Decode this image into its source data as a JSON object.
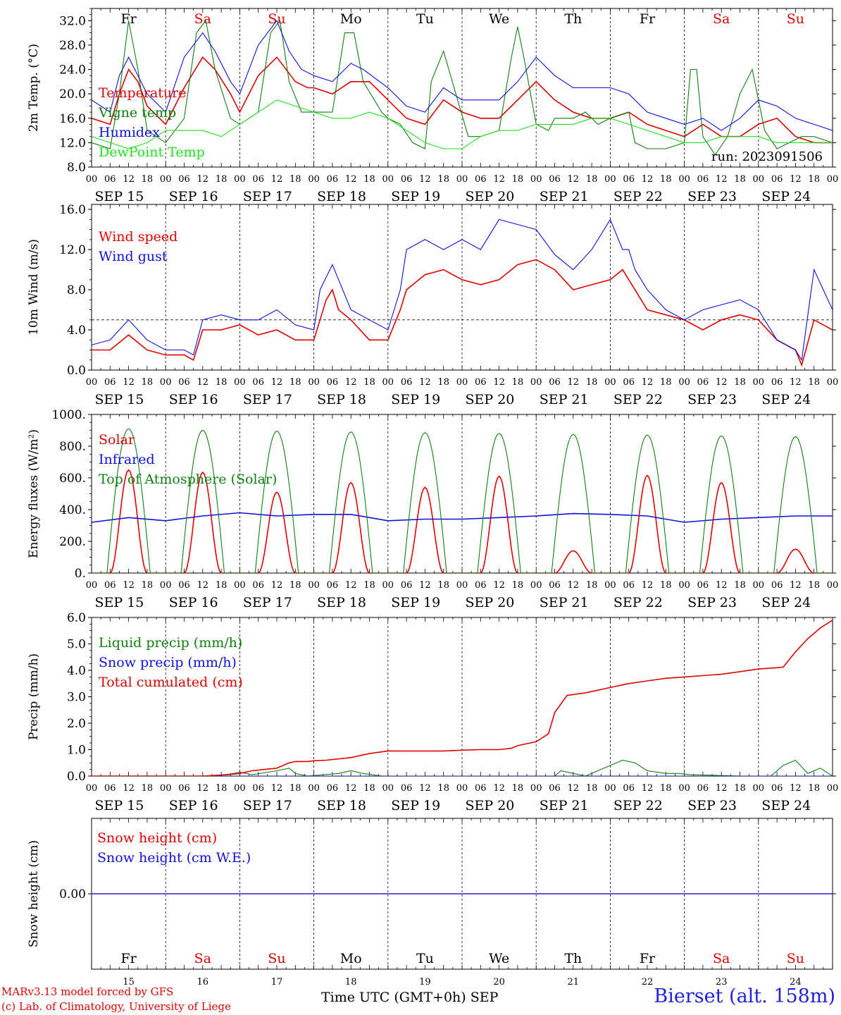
{
  "run_label": "run: 2023091506",
  "station": "Bierset (alt. 158m)",
  "credits": [
    "MARv3.13 model forced by GFS",
    "(c) Lab. of Climatology, University of Liege"
  ],
  "x_axis_title": "Time UTC (GMT+0h)",
  "x_axis_month": "SEP",
  "hour_ticks": [
    "00",
    "06",
    "12",
    "18"
  ],
  "day_labels": [
    "SEP 15",
    "SEP 16",
    "SEP 17",
    "SEP 18",
    "SEP 19",
    "SEP 20",
    "SEP 21",
    "SEP 22",
    "SEP 23",
    "SEP 24"
  ],
  "day_numbers": [
    "15",
    "16",
    "17",
    "18",
    "19",
    "20",
    "21",
    "22",
    "23",
    "24"
  ],
  "weekdays": [
    "Fr",
    "Sa",
    "Su",
    "Mo",
    "Tu",
    "We",
    "Th",
    "Fr",
    "Sa",
    "Su"
  ],
  "weekday_colors": [
    "#000000",
    "#e00000",
    "#e00000",
    "#000000",
    "#000000",
    "#000000",
    "#000000",
    "#000000",
    "#e00000",
    "#e00000"
  ],
  "colors": {
    "red": "#e00000",
    "blue": "#1010e0",
    "green": "#108010",
    "lightgreen": "#20e020",
    "purple": "#8030a0"
  },
  "chart_data": [
    {
      "type": "line",
      "ylabel": "2m Temp. (°C)",
      "ylim": [
        8,
        34
      ],
      "yticks": [
        8.0,
        12.0,
        16.0,
        20.0,
        24.0,
        28.0,
        32.0
      ],
      "ytick_labels": [
        "8.0",
        "12.0",
        "16.0",
        "20.0",
        "24.0",
        "28.0",
        "32.0"
      ],
      "x_unit": "hours since SEP 15 00 UTC",
      "x_range": [
        0,
        240
      ],
      "series": [
        {
          "name": "Temperature",
          "color": "#e00000",
          "x": [
            0,
            6,
            9,
            12,
            15,
            18,
            24,
            30,
            36,
            40,
            45,
            48,
            54,
            60,
            66,
            70,
            72,
            78,
            84,
            90,
            96,
            102,
            108,
            114,
            120,
            126,
            132,
            138,
            144,
            150,
            156,
            162,
            168,
            174,
            180,
            186,
            192,
            198,
            204,
            210,
            216,
            222,
            228,
            234,
            240
          ],
          "values": [
            16,
            15,
            20,
            24,
            22,
            18,
            15,
            21,
            26,
            24,
            20,
            17,
            23,
            26,
            22,
            21,
            21,
            20,
            22,
            22,
            19,
            16,
            15,
            19,
            17,
            16,
            16,
            19,
            22,
            19,
            17,
            16,
            16,
            17,
            15,
            14,
            13,
            15,
            13,
            13,
            15,
            16,
            13,
            12,
            12
          ]
        },
        {
          "name": "Vigne temp",
          "color": "#108010",
          "x": [
            0,
            6,
            9,
            12,
            15,
            18,
            24,
            30,
            34,
            37,
            40,
            45,
            48,
            54,
            58,
            61,
            64,
            68,
            72,
            78,
            82,
            85,
            88,
            94,
            96,
            100,
            104,
            108,
            110,
            114,
            118,
            122,
            126,
            132,
            136,
            138,
            140,
            144,
            148,
            150,
            152,
            156,
            160,
            164,
            168,
            174,
            176,
            180,
            186,
            192,
            194,
            196,
            198,
            202,
            206,
            210,
            214,
            218,
            222,
            226,
            230,
            234,
            240
          ],
          "values": [
            12,
            11,
            20,
            32,
            24,
            14,
            12,
            16,
            30,
            32,
            24,
            16,
            15,
            17,
            30,
            32,
            22,
            17,
            17,
            17,
            30,
            30,
            22,
            17,
            16,
            15,
            12,
            11,
            22,
            27,
            20,
            13,
            13,
            14,
            26,
            31,
            26,
            15,
            14,
            16,
            16,
            16,
            17,
            15,
            16,
            17,
            12,
            11,
            11,
            12,
            24,
            24,
            13,
            10,
            13,
            20,
            24,
            14,
            11,
            12,
            13,
            13,
            12
          ]
        },
        {
          "name": "Humidex",
          "color": "#1010e0",
          "x": [
            0,
            6,
            9,
            12,
            15,
            18,
            24,
            30,
            36,
            40,
            45,
            48,
            54,
            60,
            64,
            68,
            72,
            78,
            84,
            88,
            96,
            102,
            108,
            114,
            120,
            126,
            132,
            138,
            144,
            150,
            156,
            162,
            168,
            174,
            180,
            186,
            192,
            198,
            204,
            210,
            216,
            222,
            228,
            234,
            240
          ],
          "values": [
            19,
            17,
            23,
            26,
            23,
            20,
            17,
            26,
            30,
            27,
            22,
            20,
            28,
            32,
            27,
            24,
            23,
            22,
            25,
            24,
            21,
            18,
            17,
            21,
            19,
            19,
            19,
            22,
            26,
            23,
            21,
            21,
            21,
            20,
            17,
            16,
            15,
            16,
            14,
            16,
            19,
            18,
            16,
            15,
            14
          ]
        },
        {
          "name": "DewPoint Temp",
          "color": "#20e020",
          "x": [
            0,
            6,
            12,
            18,
            24,
            30,
            36,
            42,
            48,
            54,
            60,
            66,
            72,
            78,
            84,
            90,
            96,
            102,
            108,
            114,
            120,
            126,
            132,
            138,
            144,
            150,
            156,
            162,
            168,
            174,
            180,
            186,
            192,
            198,
            204,
            210,
            216,
            222,
            228,
            234,
            240
          ],
          "values": [
            13,
            12,
            11,
            12,
            14,
            14,
            14,
            13,
            15,
            17,
            19,
            18,
            17,
            16,
            16,
            17,
            16,
            14,
            12,
            11,
            11,
            13,
            14,
            14,
            15,
            15,
            15,
            16,
            16,
            15,
            14,
            13,
            12,
            12,
            13,
            13,
            13,
            12,
            12,
            12,
            12
          ]
        }
      ]
    },
    {
      "type": "line",
      "ylabel": "10m Wind (m/s)",
      "ylim": [
        0,
        16
      ],
      "yticks": [
        0,
        4,
        8,
        12,
        16
      ],
      "ytick_labels": [
        "0.0",
        "4.0",
        "8.0",
        "12.0",
        "16.0"
      ],
      "reference_line": 5,
      "x_unit": "hours since SEP 15 00 UTC",
      "x_range": [
        0,
        240
      ],
      "series": [
        {
          "name": "Wind speed",
          "color": "#e00000",
          "x": [
            0,
            6,
            12,
            18,
            24,
            30,
            33,
            36,
            42,
            48,
            54,
            60,
            66,
            72,
            76,
            78,
            80,
            84,
            90,
            96,
            100,
            102,
            108,
            114,
            120,
            126,
            132,
            138,
            144,
            150,
            156,
            162,
            168,
            172,
            174,
            176,
            180,
            186,
            192,
            198,
            204,
            210,
            216,
            222,
            228,
            230,
            234,
            240
          ],
          "values": [
            2,
            2,
            3.5,
            2,
            1.5,
            1.5,
            1,
            4,
            4,
            4.5,
            3.5,
            4,
            3,
            3,
            7,
            8,
            6,
            5,
            3,
            3,
            6,
            8,
            9.5,
            10,
            9,
            8.5,
            9,
            10.5,
            11,
            10,
            8,
            8.5,
            9,
            10,
            9,
            8,
            6,
            5.5,
            5,
            4,
            5,
            5.5,
            5,
            3,
            2,
            0.5,
            5,
            4
          ]
        },
        {
          "name": "Wind gust",
          "color": "#1010e0",
          "x": [
            0,
            6,
            12,
            18,
            24,
            30,
            33,
            36,
            42,
            48,
            54,
            60,
            66,
            72,
            74,
            78,
            80,
            84,
            90,
            96,
            100,
            102,
            108,
            114,
            120,
            126,
            132,
            138,
            144,
            150,
            156,
            162,
            168,
            172,
            174,
            176,
            180,
            186,
            192,
            198,
            204,
            210,
            216,
            222,
            228,
            230,
            234,
            240
          ],
          "values": [
            2.5,
            3,
            5,
            3,
            2,
            2,
            1.5,
            5,
            5.5,
            5,
            5,
            6,
            4.5,
            4,
            8,
            10.5,
            9,
            6,
            5,
            4,
            8,
            12,
            13,
            12,
            13,
            12,
            15,
            14.5,
            14,
            11.5,
            10,
            12,
            15,
            12,
            12,
            10,
            8,
            6,
            5,
            6,
            6.5,
            7,
            6,
            3,
            2,
            1,
            10,
            6
          ]
        }
      ]
    },
    {
      "type": "line",
      "ylabel": "Energy fluxes (W/m²)",
      "ylim": [
        0,
        1000
      ],
      "yticks": [
        0,
        200,
        400,
        600,
        800,
        1000
      ],
      "ytick_labels": [
        "0.",
        "200.",
        "400.",
        "600.",
        "800.",
        "1000."
      ],
      "x_unit": "hours since SEP 15 00 UTC",
      "x_range": [
        0,
        240
      ],
      "solar_peaks_wm2": [
        650,
        635,
        510,
        570,
        540,
        610,
        140,
        615,
        570,
        150
      ],
      "toa_peaks_wm2": [
        910,
        900,
        895,
        890,
        885,
        880,
        875,
        870,
        865,
        860
      ],
      "series": [
        {
          "name": "Solar",
          "color": "#e00000"
        },
        {
          "name": "Infrared",
          "color": "#1010e0",
          "x": [
            0,
            12,
            24,
            36,
            48,
            60,
            72,
            84,
            96,
            108,
            120,
            132,
            144,
            156,
            168,
            180,
            192,
            204,
            216,
            228,
            240
          ],
          "values": [
            320,
            350,
            330,
            360,
            380,
            360,
            370,
            370,
            330,
            340,
            340,
            350,
            360,
            375,
            370,
            360,
            320,
            340,
            350,
            360,
            360
          ]
        },
        {
          "name": "Top of Atmosphere (Solar)",
          "color": "#108010"
        }
      ]
    },
    {
      "type": "line",
      "ylabel": "Precip (mm/h)",
      "ylim": [
        0,
        6
      ],
      "yticks": [
        0,
        1,
        2,
        3,
        4,
        5,
        6
      ],
      "ytick_labels": [
        "0.0",
        "1.0",
        "2.0",
        "3.0",
        "4.0",
        "5.0",
        "6.0"
      ],
      "x_unit": "hours since SEP 15 00 UTC",
      "x_range": [
        0,
        240
      ],
      "series": [
        {
          "name": "Liquid precip (mm/h)",
          "color": "#108010",
          "x": [
            0,
            40,
            46,
            48,
            52,
            60,
            64,
            66,
            70,
            80,
            84,
            88,
            94,
            120,
            150,
            152,
            156,
            160,
            170,
            172,
            176,
            180,
            186,
            190,
            194,
            210,
            220,
            224,
            228,
            232,
            236,
            240
          ],
          "values": [
            0,
            0,
            0.1,
            0.15,
            0.05,
            0.2,
            0.3,
            0.1,
            0,
            0.1,
            0.2,
            0.1,
            0,
            0,
            0,
            0.2,
            0.1,
            0,
            0.5,
            0.6,
            0.5,
            0.2,
            0.1,
            0.1,
            0.05,
            0,
            0,
            0.4,
            0.6,
            0.1,
            0.3,
            0
          ]
        },
        {
          "name": "Snow precip (mm/h)",
          "color": "#1010e0",
          "x": [
            0,
            240
          ],
          "values": [
            0,
            0
          ]
        },
        {
          "name": "Total cumulated (cm)",
          "color": "#e00000",
          "x": [
            0,
            36,
            44,
            48,
            52,
            56,
            60,
            64,
            66,
            70,
            72,
            76,
            84,
            90,
            96,
            100,
            108,
            114,
            120,
            126,
            132,
            136,
            138,
            140,
            144,
            148,
            150,
            154,
            160,
            168,
            174,
            180,
            186,
            192,
            198,
            204,
            210,
            216,
            222,
            224,
            228,
            232,
            236,
            240
          ],
          "values": [
            0,
            0,
            0.05,
            0.1,
            0.2,
            0.25,
            0.3,
            0.5,
            0.55,
            0.55,
            0.58,
            0.6,
            0.7,
            0.85,
            0.95,
            0.95,
            0.95,
            0.95,
            0.98,
            1.0,
            1.0,
            1.05,
            1.15,
            1.2,
            1.3,
            1.6,
            2.4,
            3.05,
            3.15,
            3.35,
            3.5,
            3.6,
            3.7,
            3.75,
            3.8,
            3.85,
            3.95,
            4.05,
            4.1,
            4.12,
            4.7,
            5.2,
            5.6,
            5.9
          ]
        }
      ]
    },
    {
      "type": "line",
      "ylabel": "Snow height (cm)",
      "yticks": [
        0
      ],
      "ytick_labels": [
        "0.00"
      ],
      "x_unit": "hours since SEP 15 00 UTC",
      "x_range": [
        0,
        240
      ],
      "series": [
        {
          "name": "Snow height (cm)",
          "color": "#e00000",
          "x": [
            0,
            240
          ],
          "values": [
            0,
            0
          ]
        },
        {
          "name": "Snow height (cm W.E.)",
          "color": "#1010e0",
          "x": [
            0,
            240
          ],
          "values": [
            0,
            0
          ]
        }
      ]
    }
  ]
}
